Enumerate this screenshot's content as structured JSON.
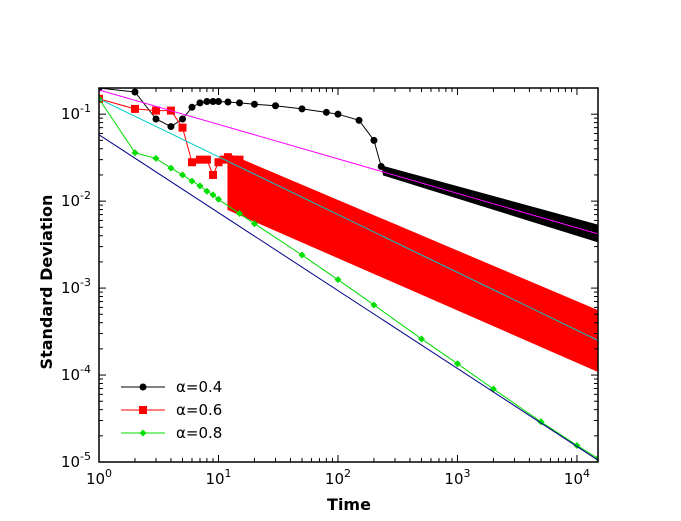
{
  "chart_data": {
    "type": "line",
    "xscale": "log",
    "yscale": "log",
    "xlabel": "Time",
    "ylabel": "Standard Deviation",
    "xlim": [
      1,
      15000
    ],
    "ylim": [
      1e-05,
      0.2
    ],
    "x_ticks": [
      {
        "value": 1,
        "base": "10",
        "exp": "0"
      },
      {
        "value": 10,
        "base": "10",
        "exp": "1"
      },
      {
        "value": 100,
        "base": "10",
        "exp": "2"
      },
      {
        "value": 1000,
        "base": "10",
        "exp": "3"
      },
      {
        "value": 10000,
        "base": "10",
        "exp": "4"
      }
    ],
    "y_ticks": [
      {
        "value": 1e-05,
        "base": "10",
        "exp": "-5"
      },
      {
        "value": 0.0001,
        "base": "10",
        "exp": "-4"
      },
      {
        "value": 0.001,
        "base": "10",
        "exp": "-3"
      },
      {
        "value": 0.01,
        "base": "10",
        "exp": "-2"
      },
      {
        "value": 0.1,
        "base": "10",
        "exp": "-1"
      }
    ],
    "legend_position": "bottom-left",
    "series": [
      {
        "name": "α=0.4",
        "color": "#000000",
        "marker": "circle",
        "points": [
          [
            1,
            0.2
          ],
          [
            2,
            0.18
          ],
          [
            3,
            0.088
          ],
          [
            4,
            0.072
          ],
          [
            5,
            0.088
          ],
          [
            6,
            0.12
          ],
          [
            7,
            0.135
          ],
          [
            8,
            0.14
          ],
          [
            9,
            0.14
          ],
          [
            10,
            0.14
          ],
          [
            12,
            0.138
          ],
          [
            15,
            0.135
          ],
          [
            20,
            0.13
          ],
          [
            30,
            0.125
          ],
          [
            50,
            0.115
          ],
          [
            80,
            0.105
          ],
          [
            100,
            0.1
          ],
          [
            150,
            0.085
          ],
          [
            200,
            0.05
          ],
          [
            230,
            0.025
          ],
          [
            250,
            0.022
          ],
          [
            300,
            0.02
          ],
          [
            500,
            0.017
          ],
          [
            1000,
            0.013
          ],
          [
            2000,
            0.0098
          ],
          [
            5000,
            0.0068
          ],
          [
            10000,
            0.0052
          ],
          [
            15000,
            0.0045
          ]
        ],
        "envelope": {
          "x": [
            240,
            15000
          ],
          "low": [
            0.02,
            0.0034
          ],
          "high": [
            0.025,
            0.0053
          ]
        }
      },
      {
        "name": "α=0.6",
        "color": "#ff0000",
        "marker": "square",
        "points": [
          [
            1,
            0.15
          ],
          [
            2,
            0.115
          ],
          [
            3,
            0.11
          ],
          [
            4,
            0.11
          ],
          [
            5,
            0.07
          ],
          [
            6,
            0.028
          ],
          [
            7,
            0.03
          ],
          [
            8,
            0.03
          ],
          [
            9,
            0.02
          ],
          [
            10,
            0.028
          ],
          [
            11,
            0.03
          ],
          [
            12,
            0.032
          ],
          [
            13,
            0.03
          ],
          [
            15,
            0.03
          ],
          [
            20,
            0.02
          ],
          [
            30,
            0.016
          ],
          [
            50,
            0.012
          ],
          [
            100,
            0.0075
          ],
          [
            200,
            0.005
          ],
          [
            500,
            0.0028
          ],
          [
            1000,
            0.0017
          ],
          [
            2000,
            0.0011
          ],
          [
            5000,
            0.00062
          ],
          [
            10000,
            0.00038
          ],
          [
            15000,
            0.00028
          ]
        ],
        "envelope": {
          "x": [
            12,
            15000
          ],
          "low": [
            0.008,
            0.00011
          ],
          "high": [
            0.035,
            0.00055
          ]
        }
      },
      {
        "name": "α=0.8",
        "color": "#00dd00",
        "marker": "diamond",
        "points": [
          [
            1,
            0.15
          ],
          [
            2,
            0.036
          ],
          [
            3,
            0.031
          ],
          [
            4,
            0.024
          ],
          [
            5,
            0.02
          ],
          [
            6,
            0.017
          ],
          [
            7,
            0.015
          ],
          [
            8,
            0.013
          ],
          [
            9,
            0.0118
          ],
          [
            10,
            0.0105
          ],
          [
            15,
            0.0072
          ],
          [
            20,
            0.0055
          ],
          [
            50,
            0.0024
          ],
          [
            100,
            0.00125
          ],
          [
            200,
            0.00064
          ],
          [
            500,
            0.00026
          ],
          [
            1000,
            0.000135
          ],
          [
            2000,
            6.9e-05
          ],
          [
            5000,
            2.9e-05
          ],
          [
            10000,
            1.55e-05
          ],
          [
            15000,
            1.1e-05
          ]
        ]
      }
    ],
    "fit_lines": [
      {
        "color": "#ff00ff",
        "x": [
          1,
          15000
        ],
        "y": [
          0.19,
          0.0042
        ]
      },
      {
        "color": "#00cccc",
        "x": [
          1,
          15000
        ],
        "y": [
          0.15,
          0.00025
        ]
      },
      {
        "color": "#000088",
        "x": [
          1,
          15000
        ],
        "y": [
          0.058,
          1.05e-05
        ]
      }
    ]
  }
}
